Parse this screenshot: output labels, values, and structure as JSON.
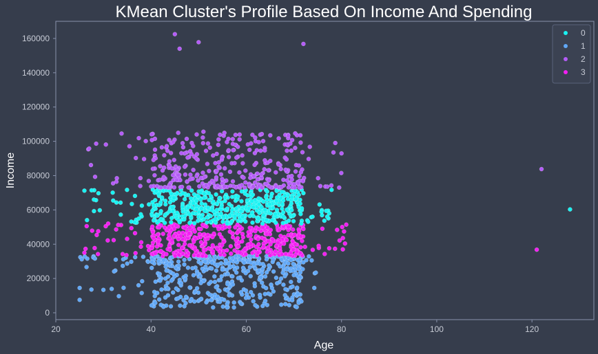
{
  "colors": {
    "background": "#363d4c",
    "axes_edge": "#8a93ad",
    "legend_face": "#3b4252",
    "legend_edge": "#59627a",
    "cluster_0": "#19f2f2",
    "cluster_1": "#61a8f7",
    "cluster_2": "#b45cf7",
    "cluster_3": "#f21ff2"
  },
  "chart_data": {
    "type": "scatter",
    "title": "KMean Cluster's Profile Based On Income And Spending",
    "xlabel": "Age",
    "ylabel": "Income",
    "xlim": [
      20,
      133
    ],
    "ylim": [
      -4000,
      170000
    ],
    "xticks": [
      20,
      40,
      60,
      80,
      100,
      120
    ],
    "yticks": [
      0,
      20000,
      40000,
      60000,
      80000,
      100000,
      120000,
      140000,
      160000
    ],
    "grid": false,
    "legend": {
      "placement": "top-right",
      "entries": [
        "0",
        "1",
        "2",
        "3"
      ]
    },
    "series": [
      {
        "name": "0",
        "ranges": {
          "age": [
            26,
            78
          ],
          "income": [
            52000,
            72000
          ]
        },
        "notable_points": [
          [
            128,
            60300
          ],
          [
            26,
            71200
          ],
          [
            28,
            66000
          ],
          [
            77,
            56000
          ]
        ]
      },
      {
        "name": "1",
        "ranges": {
          "age": [
            25,
            75
          ],
          "income": [
            3000,
            33000
          ]
        },
        "notable_points": [
          [
            25,
            14500
          ],
          [
            25,
            7500
          ],
          [
            47,
            3800
          ],
          [
            56,
            5200
          ],
          [
            71,
            5800
          ],
          [
            64,
            7000
          ]
        ]
      },
      {
        "name": "2",
        "ranges": {
          "age": [
            26,
            80
          ],
          "income": [
            73000,
            105000
          ]
        },
        "notable_points": [
          [
            45,
            162500
          ],
          [
            46,
            154000
          ],
          [
            50,
            157800
          ],
          [
            72,
            156800
          ],
          [
            122,
            83800
          ],
          [
            51,
            105600
          ],
          [
            61,
            98800
          ],
          [
            80,
            93000
          ],
          [
            27,
            95800
          ]
        ]
      },
      {
        "name": "3",
        "ranges": {
          "age": [
            26,
            81
          ],
          "income": [
            33000,
            51500
          ]
        },
        "notable_points": [
          [
            121,
            36800
          ],
          [
            81,
            51400
          ],
          [
            26,
            35000
          ],
          [
            31,
            52000
          ]
        ]
      }
    ]
  }
}
